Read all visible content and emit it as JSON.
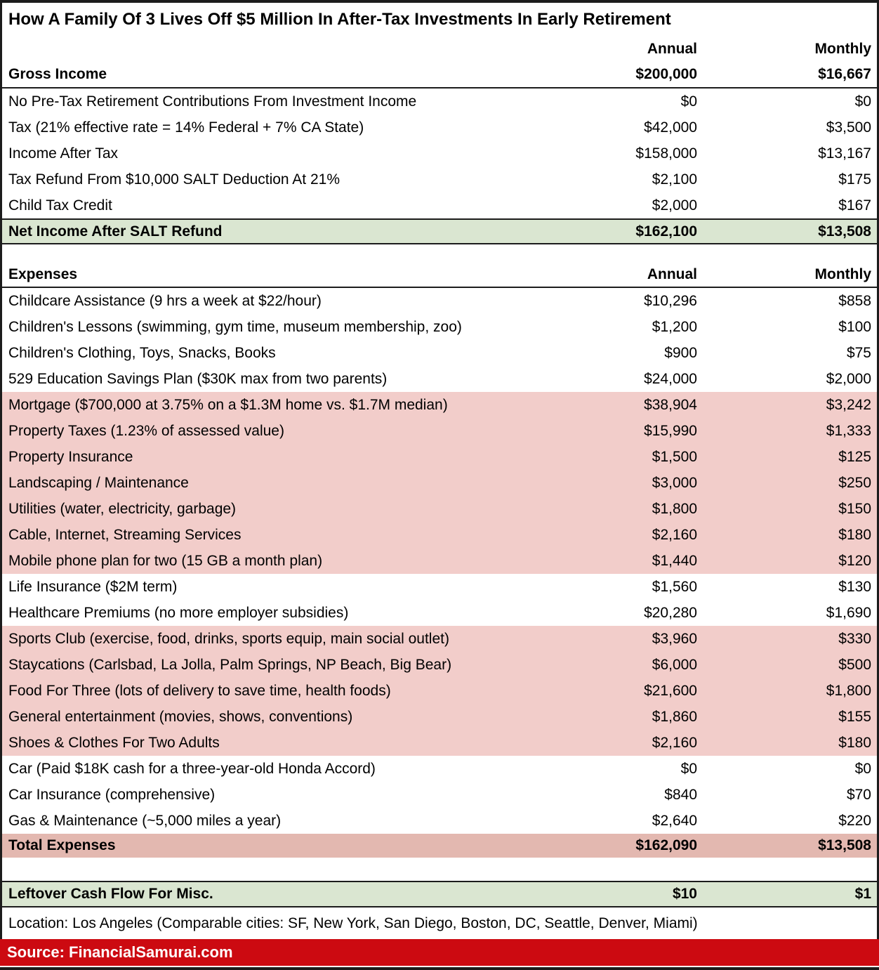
{
  "chart_data": {
    "type": "table",
    "title": "How A Family Of 3 Lives Off $5 Million In After-Tax Investments In Early Retirement",
    "columns": [
      "Annual",
      "Monthly"
    ],
    "income": {
      "header": {
        "label": "Gross Income",
        "annual": 200000,
        "monthly": 16667
      },
      "rows": [
        {
          "label": "No Pre-Tax Retirement Contributions From Investment Income",
          "annual": 0,
          "monthly": 0,
          "highlight": "none"
        },
        {
          "label": "Tax (21% effective rate = 14% Federal + 7% CA State)",
          "annual": 42000,
          "monthly": 3500,
          "highlight": "none"
        },
        {
          "label": "Income After Tax",
          "annual": 158000,
          "monthly": 13167,
          "highlight": "none"
        },
        {
          "label": "Tax Refund From $10,000 SALT Deduction At 21%",
          "annual": 2100,
          "monthly": 175,
          "highlight": "none"
        },
        {
          "label": "Child Tax Credit",
          "annual": 2000,
          "monthly": 167,
          "highlight": "none"
        }
      ],
      "total": {
        "label": "Net Income After SALT Refund",
        "annual": 162100,
        "monthly": 13508,
        "highlight": "green"
      }
    },
    "expenses": {
      "header_label": "Expenses",
      "rows": [
        {
          "label": "Childcare Assistance (9 hrs a week at $22/hour)",
          "annual": 10296,
          "monthly": 858,
          "highlight": "none"
        },
        {
          "label": "Children's Lessons (swimming, gym time, museum membership, zoo)",
          "annual": 1200,
          "monthly": 100,
          "highlight": "none"
        },
        {
          "label": "Children's Clothing, Toys, Snacks, Books",
          "annual": 900,
          "monthly": 75,
          "highlight": "none"
        },
        {
          "label": "529 Education Savings Plan ($30K max from two parents)",
          "annual": 24000,
          "monthly": 2000,
          "highlight": "none"
        },
        {
          "label": "Mortgage ($700,000 at 3.75% on a $1.3M home vs. $1.7M median)",
          "annual": 38904,
          "monthly": 3242,
          "highlight": "pink"
        },
        {
          "label": "Property Taxes (1.23% of assessed value)",
          "annual": 15990,
          "monthly": 1333,
          "highlight": "pink"
        },
        {
          "label": "Property Insurance",
          "annual": 1500,
          "monthly": 125,
          "highlight": "pink"
        },
        {
          "label": "Landscaping / Maintenance",
          "annual": 3000,
          "monthly": 250,
          "highlight": "pink"
        },
        {
          "label": "Utilities (water, electricity, garbage)",
          "annual": 1800,
          "monthly": 150,
          "highlight": "pink"
        },
        {
          "label": "Cable, Internet, Streaming Services",
          "annual": 2160,
          "monthly": 180,
          "highlight": "pink"
        },
        {
          "label": "Mobile phone plan for two (15 GB a month plan)",
          "annual": 1440,
          "monthly": 120,
          "highlight": "pink"
        },
        {
          "label": "Life Insurance ($2M term)",
          "annual": 1560,
          "monthly": 130,
          "highlight": "none"
        },
        {
          "label": "Healthcare Premiums (no more employer subsidies)",
          "annual": 20280,
          "monthly": 1690,
          "highlight": "none"
        },
        {
          "label": "Sports Club (exercise, food, drinks, sports equip, main social outlet)",
          "annual": 3960,
          "monthly": 330,
          "highlight": "pink"
        },
        {
          "label": "Staycations (Carlsbad, La Jolla, Palm Springs, NP Beach, Big Bear)",
          "annual": 6000,
          "monthly": 500,
          "highlight": "pink"
        },
        {
          "label": "Food For Three (lots of delivery to save time, health foods)",
          "annual": 21600,
          "monthly": 1800,
          "highlight": "pink"
        },
        {
          "label": "General entertainment (movies, shows, conventions)",
          "annual": 1860,
          "monthly": 155,
          "highlight": "pink"
        },
        {
          "label": "Shoes & Clothes For Two Adults",
          "annual": 2160,
          "monthly": 180,
          "highlight": "pink"
        },
        {
          "label": "Car (Paid $18K cash for a three-year-old Honda Accord)",
          "annual": 0,
          "monthly": 0,
          "highlight": "none"
        },
        {
          "label": "Car Insurance (comprehensive)",
          "annual": 840,
          "monthly": 70,
          "highlight": "none"
        },
        {
          "label": "Gas & Maintenance (~5,000 miles a year)",
          "annual": 2640,
          "monthly": 220,
          "highlight": "none"
        }
      ],
      "total": {
        "label": "Total Expenses",
        "annual": 162090,
        "monthly": 13508,
        "highlight": "darkpink"
      }
    },
    "leftover": {
      "label": "Leftover Cash Flow For Misc.",
      "annual": 10,
      "monthly": 1,
      "highlight": "green"
    },
    "footnotes": {
      "location": "Location: Los Angeles (Comparable cities: SF, New York, San Diego, Boston, DC, Seattle, Denver, Miami)",
      "source": "Source: FinancialSamurai.com"
    }
  },
  "colors": {
    "green_highlight": "#dae6d1",
    "pink_highlight": "#f2cdca",
    "dark_pink_highlight": "#e3b8b0",
    "source_bar_red": "#cc0a11",
    "border_black": "#1c1c1c"
  }
}
